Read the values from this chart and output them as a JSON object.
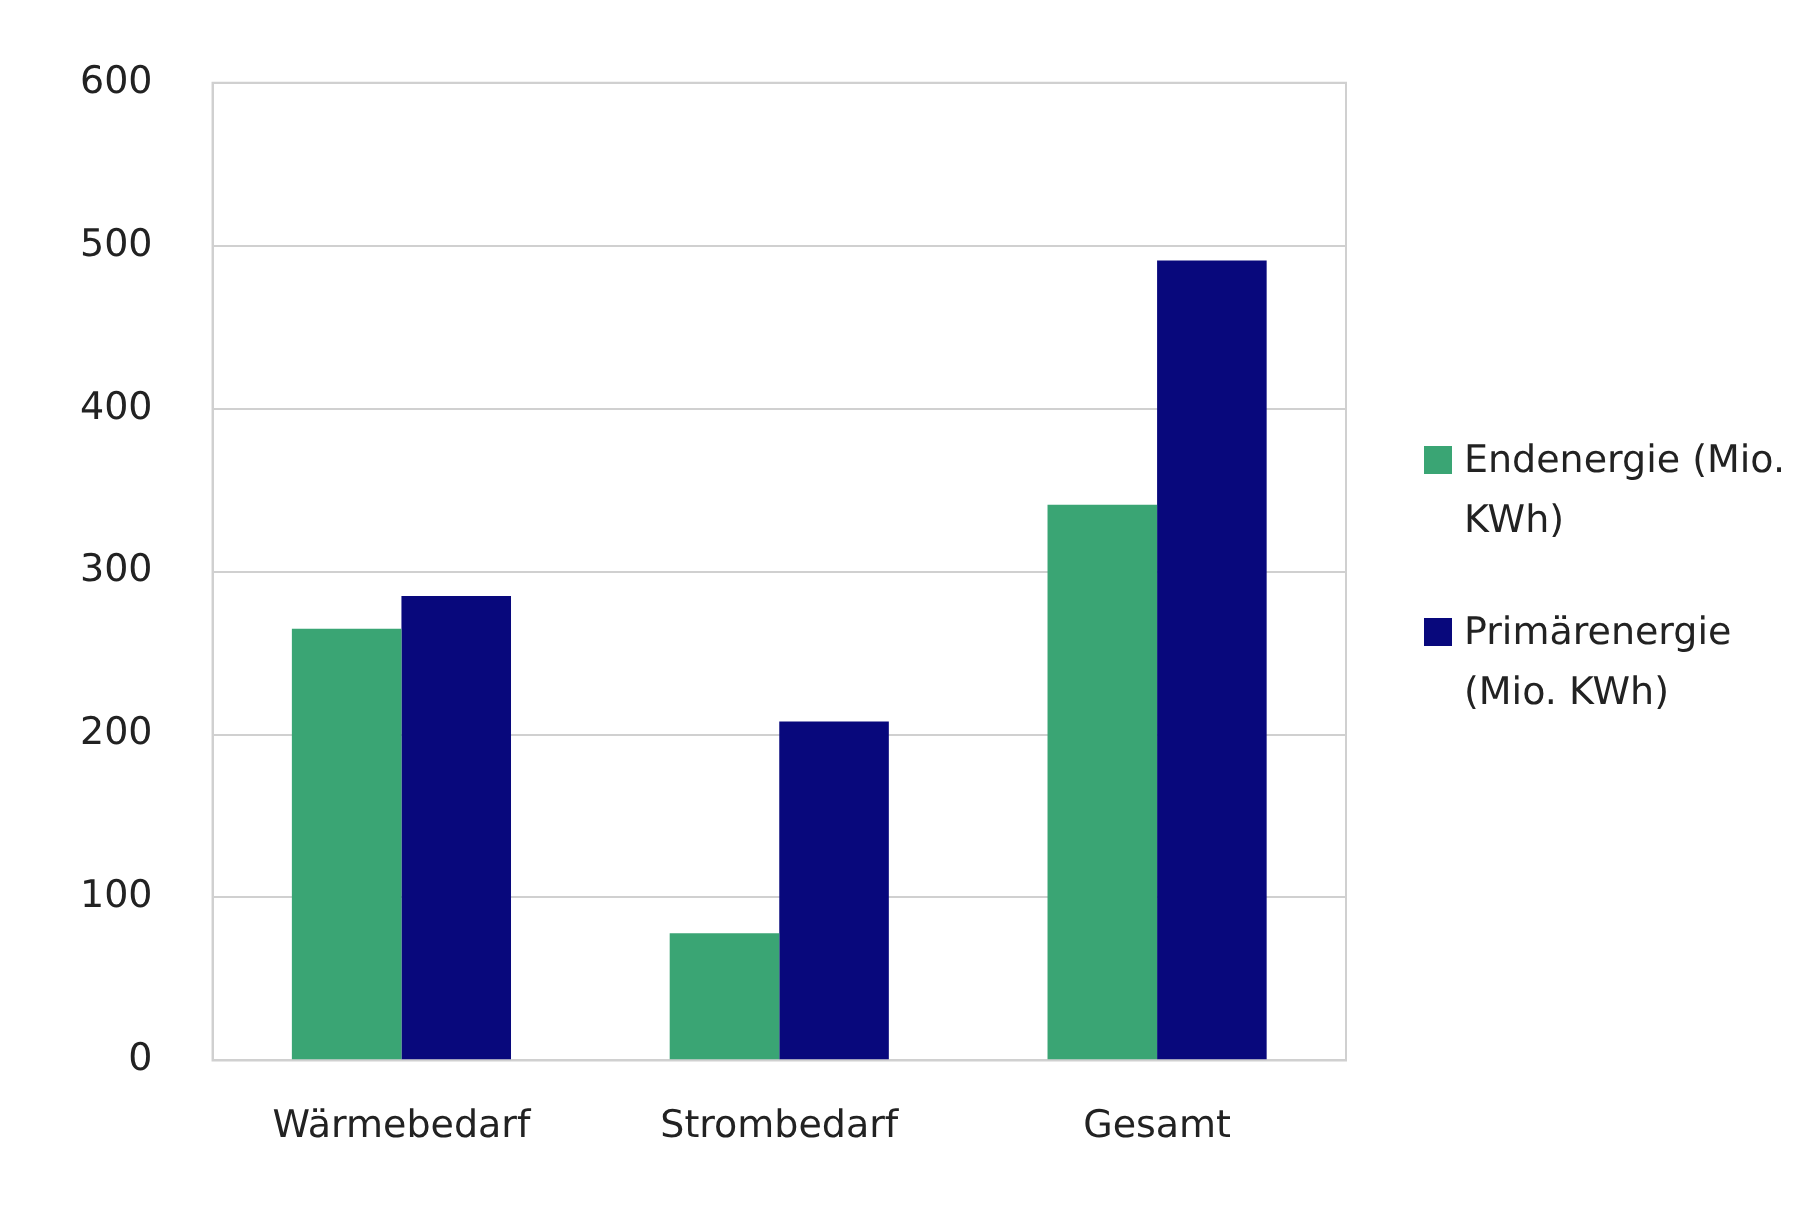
{
  "chart_data": {
    "type": "bar",
    "categories": [
      "Wärmebedarf",
      "Strombedarf",
      "Gesamt"
    ],
    "series": [
      {
        "name": "Endenergie (Mio. KWh)",
        "color": "#3aa574",
        "values": [
          265,
          78,
          341
        ]
      },
      {
        "name": "Primärenergie (Mio. KWh)",
        "color": "#08087c",
        "values": [
          285,
          208,
          491
        ]
      }
    ],
    "ylim": [
      0,
      600
    ],
    "yticks": [
      0,
      100,
      200,
      300,
      400,
      500,
      600
    ],
    "grid": "y",
    "legend": "right"
  }
}
